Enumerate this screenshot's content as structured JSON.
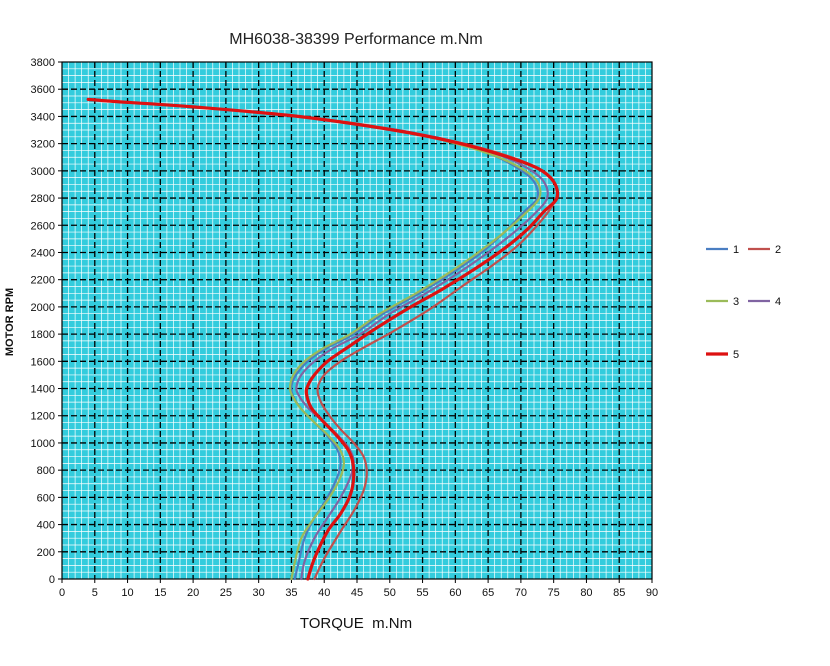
{
  "chart_data": {
    "type": "line",
    "title": "MH6038-38399 Performance m.Nm",
    "xlabel": "TORQUE  m.Nm",
    "ylabel": "MOTOR RPM",
    "xlim": [
      0,
      90
    ],
    "ylim": [
      0,
      3800
    ],
    "x_ticks": [
      "0",
      "5",
      "10",
      "15",
      "20",
      "25",
      "30",
      "35",
      "40",
      "45",
      "50",
      "55",
      "60",
      "65",
      "70",
      "75",
      "80",
      "85",
      "90"
    ],
    "y_ticks": [
      "0",
      "200",
      "400",
      "600",
      "800",
      "1000",
      "1200",
      "1400",
      "1600",
      "1800",
      "2000",
      "2200",
      "2400",
      "2600",
      "2800",
      "3000",
      "3200",
      "3400",
      "3600",
      "3800"
    ],
    "grid": true,
    "plot_background": "#33ccdd",
    "legend_position": "right",
    "series": [
      {
        "name": "1",
        "color": "#4a7ec2",
        "points": [
          [
            35.5,
            0
          ],
          [
            36,
            100
          ],
          [
            37,
            300
          ],
          [
            38.5,
            450
          ],
          [
            40.5,
            600
          ],
          [
            42,
            750
          ],
          [
            42.5,
            850
          ],
          [
            42,
            950
          ],
          [
            40.5,
            1050
          ],
          [
            38.5,
            1150
          ],
          [
            36.5,
            1250
          ],
          [
            35.2,
            1350
          ],
          [
            35,
            1420
          ],
          [
            35.7,
            1500
          ],
          [
            37.5,
            1600
          ],
          [
            40.5,
            1700
          ],
          [
            44.5,
            1800
          ],
          [
            49,
            1950
          ],
          [
            54.5,
            2100
          ],
          [
            59.5,
            2250
          ],
          [
            64,
            2400
          ],
          [
            67.5,
            2550
          ],
          [
            70.5,
            2700
          ],
          [
            72.5,
            2800
          ],
          [
            72,
            2920
          ],
          [
            69.5,
            3020
          ],
          [
            65.5,
            3120
          ],
          [
            59,
            3220
          ],
          [
            50,
            3310
          ],
          [
            36,
            3400
          ],
          [
            20,
            3470
          ],
          [
            8,
            3510
          ],
          [
            4,
            3525
          ]
        ]
      },
      {
        "name": "2",
        "color": "#c0504d",
        "points": [
          [
            38.5,
            0
          ],
          [
            40,
            150
          ],
          [
            42.5,
            350
          ],
          [
            44.5,
            500
          ],
          [
            46,
            650
          ],
          [
            46.5,
            780
          ],
          [
            46,
            900
          ],
          [
            44.5,
            1000
          ],
          [
            42.5,
            1100
          ],
          [
            40.8,
            1200
          ],
          [
            39.5,
            1300
          ],
          [
            39,
            1400
          ],
          [
            40,
            1500
          ],
          [
            42.5,
            1600
          ],
          [
            46,
            1700
          ],
          [
            50.5,
            1820
          ],
          [
            56,
            1980
          ],
          [
            61,
            2150
          ],
          [
            65.5,
            2300
          ],
          [
            69.5,
            2450
          ],
          [
            72.5,
            2600
          ],
          [
            74.5,
            2720
          ],
          [
            75.5,
            2820
          ],
          [
            75,
            2920
          ],
          [
            72.5,
            3020
          ],
          [
            68,
            3110
          ],
          [
            60.5,
            3210
          ],
          [
            50.5,
            3300
          ],
          [
            36,
            3400
          ],
          [
            20,
            3470
          ],
          [
            8,
            3510
          ],
          [
            4,
            3525
          ]
        ]
      },
      {
        "name": "3",
        "color": "#9bbb59",
        "points": [
          [
            35,
            0
          ],
          [
            35.5,
            120
          ],
          [
            36.5,
            300
          ],
          [
            38.5,
            450
          ],
          [
            40.8,
            600
          ],
          [
            42.5,
            750
          ],
          [
            43,
            860
          ],
          [
            42.3,
            960
          ],
          [
            40.5,
            1060
          ],
          [
            38.3,
            1160
          ],
          [
            36.3,
            1260
          ],
          [
            35,
            1360
          ],
          [
            34.8,
            1420
          ],
          [
            35.3,
            1500
          ],
          [
            37,
            1600
          ],
          [
            40,
            1700
          ],
          [
            44,
            1800
          ],
          [
            48.5,
            1950
          ],
          [
            54,
            2100
          ],
          [
            59,
            2250
          ],
          [
            63.5,
            2400
          ],
          [
            67.5,
            2550
          ],
          [
            70.5,
            2680
          ],
          [
            72.8,
            2800
          ],
          [
            72.5,
            2920
          ],
          [
            70,
            3020
          ],
          [
            65.5,
            3120
          ],
          [
            58.5,
            3220
          ],
          [
            50,
            3310
          ],
          [
            36,
            3400
          ],
          [
            20,
            3470
          ],
          [
            8,
            3510
          ],
          [
            4,
            3525
          ]
        ]
      },
      {
        "name": "4",
        "color": "#8064a2",
        "points": [
          [
            36.5,
            0
          ],
          [
            37,
            130
          ],
          [
            38.5,
            300
          ],
          [
            40.5,
            450
          ],
          [
            42.5,
            600
          ],
          [
            44,
            750
          ],
          [
            44.5,
            860
          ],
          [
            43.8,
            960
          ],
          [
            42,
            1060
          ],
          [
            39.8,
            1160
          ],
          [
            37.5,
            1260
          ],
          [
            36,
            1360
          ],
          [
            35.8,
            1420
          ],
          [
            36.5,
            1500
          ],
          [
            38.5,
            1600
          ],
          [
            41.5,
            1700
          ],
          [
            45.5,
            1800
          ],
          [
            50,
            1950
          ],
          [
            55.5,
            2100
          ],
          [
            60.5,
            2250
          ],
          [
            65,
            2400
          ],
          [
            69,
            2550
          ],
          [
            72,
            2680
          ],
          [
            74,
            2800
          ],
          [
            73.5,
            2920
          ],
          [
            71,
            3020
          ],
          [
            66.5,
            3120
          ],
          [
            59.5,
            3220
          ],
          [
            50,
            3310
          ],
          [
            36,
            3400
          ],
          [
            20,
            3470
          ],
          [
            8,
            3510
          ],
          [
            4,
            3525
          ]
        ]
      },
      {
        "name": "5",
        "color": "#dd1111",
        "points": [
          [
            37.5,
            0
          ],
          [
            38.5,
            150
          ],
          [
            40.5,
            350
          ],
          [
            42.5,
            480
          ],
          [
            44,
            620
          ],
          [
            44.5,
            750
          ],
          [
            44.3,
            870
          ],
          [
            43.5,
            960
          ],
          [
            41.8,
            1060
          ],
          [
            39.8,
            1160
          ],
          [
            38,
            1260
          ],
          [
            37.3,
            1360
          ],
          [
            37.5,
            1420
          ],
          [
            38.5,
            1500
          ],
          [
            40.5,
            1600
          ],
          [
            43.5,
            1700
          ],
          [
            47.5,
            1830
          ],
          [
            52.5,
            1980
          ],
          [
            58,
            2130
          ],
          [
            63,
            2280
          ],
          [
            67.5,
            2430
          ],
          [
            71,
            2570
          ],
          [
            73.5,
            2700
          ],
          [
            75.5,
            2800
          ],
          [
            75,
            2920
          ],
          [
            72.5,
            3020
          ],
          [
            67.5,
            3110
          ],
          [
            60,
            3210
          ],
          [
            50.5,
            3300
          ],
          [
            36,
            3400
          ],
          [
            20,
            3470
          ],
          [
            8,
            3510
          ],
          [
            4,
            3525
          ]
        ]
      }
    ]
  }
}
